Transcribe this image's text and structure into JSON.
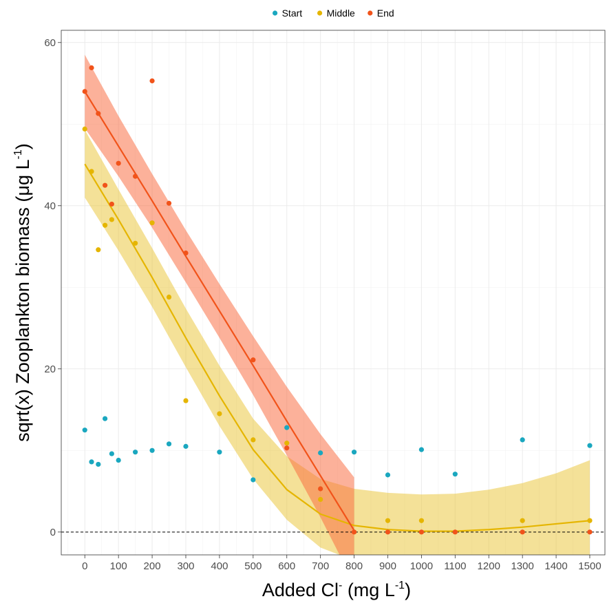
{
  "chart_data": {
    "type": "scatter",
    "title": "",
    "xlabel": {
      "prefix": "Added Cl",
      "superscript": "-",
      "unit_open": " (mg L",
      "unit_sup": "-1",
      "unit_close": ")"
    },
    "ylabel": {
      "text": "sqrt(x) Zooplankton biomass (μg L",
      "superscript": "-1",
      "close": ")"
    },
    "xlim": [
      -70,
      1545
    ],
    "ylim": [
      -2.8,
      61.5
    ],
    "x_ticks": [
      0,
      100,
      200,
      300,
      400,
      500,
      600,
      700,
      800,
      900,
      1000,
      1100,
      1200,
      1300,
      1400,
      1500
    ],
    "y_ticks": [
      0,
      20,
      40,
      60
    ],
    "grid": true,
    "legend_position": "top",
    "reference_line": {
      "y": 0,
      "style": "dashed"
    },
    "series": [
      {
        "name": "Start",
        "color": "#1AA7BF",
        "points": [
          [
            0,
            12.5
          ],
          [
            20,
            8.6
          ],
          [
            40,
            8.3
          ],
          [
            60,
            13.9
          ],
          [
            80,
            9.6
          ],
          [
            100,
            8.8
          ],
          [
            150,
            9.8
          ],
          [
            200,
            10.0
          ],
          [
            250,
            10.8
          ],
          [
            300,
            10.5
          ],
          [
            400,
            9.8
          ],
          [
            500,
            6.4
          ],
          [
            600,
            12.8
          ],
          [
            700,
            9.7
          ],
          [
            800,
            9.8
          ],
          [
            900,
            7.0
          ],
          [
            1000,
            10.1
          ],
          [
            1100,
            7.1
          ],
          [
            1300,
            11.3
          ],
          [
            1500,
            10.6
          ]
        ]
      },
      {
        "name": "Middle",
        "color": "#E5B500",
        "points": [
          [
            0,
            49.4
          ],
          [
            20,
            44.2
          ],
          [
            40,
            34.6
          ],
          [
            60,
            37.6
          ],
          [
            80,
            38.3
          ],
          [
            150,
            35.4
          ],
          [
            200,
            37.9
          ],
          [
            250,
            28.8
          ],
          [
            300,
            16.1
          ],
          [
            400,
            14.5
          ],
          [
            500,
            11.3
          ],
          [
            600,
            10.9
          ],
          [
            700,
            4.0
          ],
          [
            900,
            1.4
          ],
          [
            1000,
            1.4
          ],
          [
            1300,
            1.4
          ],
          [
            1500,
            1.4
          ]
        ],
        "fit": [
          [
            0,
            45.1
          ],
          [
            100,
            38.3
          ],
          [
            200,
            31.2
          ],
          [
            300,
            23.8
          ],
          [
            400,
            16.7
          ],
          [
            500,
            10.1
          ],
          [
            600,
            5.2
          ],
          [
            700,
            2.2
          ],
          [
            800,
            0.8
          ],
          [
            900,
            0.3
          ],
          [
            1000,
            0.1
          ],
          [
            1100,
            0.1
          ],
          [
            1200,
            0.3
          ],
          [
            1300,
            0.6
          ],
          [
            1400,
            1.0
          ],
          [
            1500,
            1.4
          ]
        ],
        "ci_upper": [
          [
            0,
            49.3
          ],
          [
            100,
            42.0
          ],
          [
            200,
            34.8
          ],
          [
            300,
            27.4
          ],
          [
            400,
            20.4
          ],
          [
            500,
            13.9
          ],
          [
            600,
            9.3
          ],
          [
            700,
            6.5
          ],
          [
            800,
            5.3
          ],
          [
            900,
            4.8
          ],
          [
            1000,
            4.6
          ],
          [
            1100,
            4.7
          ],
          [
            1200,
            5.2
          ],
          [
            1300,
            6.0
          ],
          [
            1400,
            7.2
          ],
          [
            1500,
            8.8
          ]
        ],
        "ci_lower": [
          [
            0,
            41.0
          ],
          [
            100,
            34.5
          ],
          [
            200,
            27.6
          ],
          [
            300,
            20.2
          ],
          [
            400,
            13.0
          ],
          [
            500,
            6.5
          ],
          [
            600,
            1.5
          ],
          [
            700,
            -1.9
          ],
          [
            800,
            -3.5
          ],
          [
            900,
            -4.2
          ],
          [
            1000,
            -4.4
          ],
          [
            1100,
            -4.5
          ],
          [
            1200,
            -4.6
          ],
          [
            1300,
            -4.8
          ],
          [
            1400,
            -5.2
          ],
          [
            1500,
            -6.0
          ]
        ]
      },
      {
        "name": "End",
        "color": "#F1531A",
        "points": [
          [
            0,
            54.0
          ],
          [
            20,
            56.9
          ],
          [
            40,
            51.3
          ],
          [
            60,
            42.5
          ],
          [
            80,
            40.2
          ],
          [
            100,
            45.2
          ],
          [
            150,
            43.6
          ],
          [
            200,
            55.3
          ],
          [
            250,
            40.3
          ],
          [
            300,
            34.2
          ],
          [
            500,
            21.1
          ],
          [
            600,
            10.3
          ],
          [
            700,
            5.3
          ],
          [
            800,
            0
          ],
          [
            900,
            0
          ],
          [
            1000,
            0
          ],
          [
            1100,
            0
          ],
          [
            1300,
            0
          ],
          [
            1500,
            0
          ]
        ],
        "fit": [
          [
            0,
            54.0
          ],
          [
            100,
            47.3
          ],
          [
            200,
            40.6
          ],
          [
            300,
            33.8
          ],
          [
            400,
            27.1
          ],
          [
            500,
            20.4
          ],
          [
            600,
            13.6
          ],
          [
            700,
            6.9
          ],
          [
            800,
            0.2
          ]
        ],
        "ci_upper": [
          [
            0,
            58.5
          ],
          [
            100,
            51.0
          ],
          [
            200,
            43.9
          ],
          [
            300,
            37.0
          ],
          [
            400,
            30.4
          ],
          [
            500,
            24.0
          ],
          [
            600,
            17.8
          ],
          [
            700,
            12.0
          ],
          [
            800,
            6.7
          ]
        ],
        "ci_lower": [
          [
            0,
            49.5
          ],
          [
            100,
            43.6
          ],
          [
            200,
            37.3
          ],
          [
            300,
            30.6
          ],
          [
            400,
            23.8
          ],
          [
            500,
            16.8
          ],
          [
            600,
            9.4
          ],
          [
            700,
            1.8
          ],
          [
            800,
            -6.3
          ]
        ]
      }
    ]
  }
}
